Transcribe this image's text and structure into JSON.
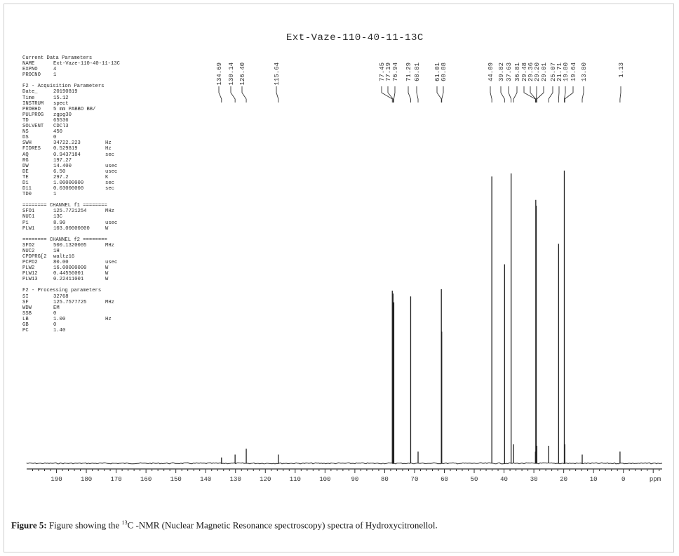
{
  "figure": {
    "caption_label": "Figure 5:",
    "caption_pre": " Figure showing the ",
    "caption_sup": "13",
    "caption_post": "C -NMR (Nuclear Magnetic Resonance spectroscopy) spectra of Hydroxycitronellol."
  },
  "params": {
    "sections": [
      {
        "title": "Current Data Parameters",
        "rows": [
          {
            "k": "NAME",
            "v": "Ext-Vaze-110-40-11-13C",
            "u": ""
          },
          {
            "k": "EXPNO",
            "v": "4",
            "u": ""
          },
          {
            "k": "PROCNO",
            "v": "1",
            "u": ""
          }
        ]
      },
      {
        "title": "F2 - Acquisition Parameters",
        "rows": [
          {
            "k": "Date_",
            "v": "20190819",
            "u": ""
          },
          {
            "k": "Time",
            "v": "15.12",
            "u": ""
          },
          {
            "k": "INSTRUM",
            "v": "spect",
            "u": ""
          },
          {
            "k": "PROBHD",
            "v": "5 mm PABBO BB/",
            "u": ""
          },
          {
            "k": "PULPROG",
            "v": "zgpg30",
            "u": ""
          },
          {
            "k": "TD",
            "v": "65536",
            "u": ""
          },
          {
            "k": "SOLVENT",
            "v": "CDCl3",
            "u": ""
          },
          {
            "k": "NS",
            "v": "450",
            "u": ""
          },
          {
            "k": "DS",
            "v": "0",
            "u": ""
          },
          {
            "k": "SWH",
            "v": "34722.223",
            "u": "Hz"
          },
          {
            "k": "FIDRES",
            "v": "0.529819",
            "u": "Hz"
          },
          {
            "k": "AQ",
            "v": "0.9437184",
            "u": "sec"
          },
          {
            "k": "RG",
            "v": "197.27",
            "u": ""
          },
          {
            "k": "DW",
            "v": "14.400",
            "u": "usec"
          },
          {
            "k": "DE",
            "v": "6.50",
            "u": "usec"
          },
          {
            "k": "TE",
            "v": "297.2",
            "u": "K"
          },
          {
            "k": "D1",
            "v": "1.00000000",
            "u": "sec"
          },
          {
            "k": "D11",
            "v": "0.03000000",
            "u": "sec"
          },
          {
            "k": "TD0",
            "v": "1",
            "u": ""
          }
        ]
      },
      {
        "title": "======== CHANNEL f1 ========",
        "rows": [
          {
            "k": "SFO1",
            "v": "125.7721254",
            "u": "MHz"
          },
          {
            "k": "NUC1",
            "v": "13C",
            "u": ""
          },
          {
            "k": "P1",
            "v": "8.90",
            "u": "usec"
          },
          {
            "k": "PLW1",
            "v": "103.00000000",
            "u": "W"
          }
        ]
      },
      {
        "title": "======== CHANNEL f2 ========",
        "rows": [
          {
            "k": "SFO2",
            "v": "500.1320005",
            "u": "MHz"
          },
          {
            "k": "NUC2",
            "v": "1H",
            "u": ""
          },
          {
            "k": "CPDPRG[2",
            "v": "waltz16",
            "u": ""
          },
          {
            "k": "PCPD2",
            "v": "80.00",
            "u": "usec"
          },
          {
            "k": "PLW2",
            "v": "16.00000000",
            "u": "W"
          },
          {
            "k": "PLW12",
            "v": "0.44556001",
            "u": "W"
          },
          {
            "k": "PLW13",
            "v": "0.22411001",
            "u": "W"
          }
        ]
      },
      {
        "title": "F2 - Processing parameters",
        "rows": [
          {
            "k": "SI",
            "v": "32768",
            "u": ""
          },
          {
            "k": "SF",
            "v": "125.7577725",
            "u": "MHz"
          },
          {
            "k": "WDW",
            "v": "EM",
            "u": ""
          },
          {
            "k": "SSB",
            "v": "0",
            "u": ""
          },
          {
            "k": "LB",
            "v": "1.00",
            "u": "Hz"
          },
          {
            "k": "GB",
            "v": "0",
            "u": ""
          },
          {
            "k": "PC",
            "v": "1.40",
            "u": ""
          }
        ]
      }
    ]
  },
  "chart_data": {
    "type": "line",
    "title": "Ext-Vaze-110-40-11-13C",
    "xlabel": "ppm",
    "ylabel": "",
    "xlim": [
      200,
      -13
    ],
    "x_reversed": true,
    "ylim": [
      0,
      100
    ],
    "grid": false,
    "xticks": [
      190,
      180,
      170,
      160,
      150,
      140,
      130,
      120,
      110,
      100,
      90,
      80,
      70,
      60,
      50,
      40,
      30,
      20,
      10,
      0
    ],
    "tick_suffix_label": "ppm",
    "peak_labels": [
      "134.69",
      "130.14",
      "126.40",
      "115.64",
      "77.45",
      "77.19",
      "76.94",
      "71.29",
      "68.81",
      "61.01",
      "60.88",
      "44.09",
      "39.82",
      "37.63",
      "36.81",
      "29.48",
      "29.36",
      "29.20",
      "29.01",
      "25.07",
      "21.71",
      "19.80",
      "19.64",
      "13.80",
      "1.13"
    ],
    "peaks": [
      {
        "x": 134.69,
        "y": 2.0
      },
      {
        "x": 130.14,
        "y": 3.0
      },
      {
        "x": 126.4,
        "y": 5.0
      },
      {
        "x": 115.64,
        "y": 3.0
      },
      {
        "x": 77.45,
        "y": 59.0
      },
      {
        "x": 77.19,
        "y": 58.0
      },
      {
        "x": 76.94,
        "y": 55.0
      },
      {
        "x": 71.29,
        "y": 57.0
      },
      {
        "x": 68.81,
        "y": 4.0
      },
      {
        "x": 61.01,
        "y": 59.5
      },
      {
        "x": 60.88,
        "y": 45.0
      },
      {
        "x": 44.09,
        "y": 98.0
      },
      {
        "x": 39.82,
        "y": 68.0
      },
      {
        "x": 37.63,
        "y": 99.0
      },
      {
        "x": 36.81,
        "y": 6.5
      },
      {
        "x": 29.48,
        "y": 4.0
      },
      {
        "x": 29.36,
        "y": 90.0
      },
      {
        "x": 29.2,
        "y": 88.0
      },
      {
        "x": 29.01,
        "y": 6.0
      },
      {
        "x": 25.07,
        "y": 6.0
      },
      {
        "x": 21.71,
        "y": 75.0
      },
      {
        "x": 19.8,
        "y": 100.0
      },
      {
        "x": 19.64,
        "y": 6.5
      },
      {
        "x": 13.8,
        "y": 3.0
      },
      {
        "x": 1.13,
        "y": 4.0
      }
    ]
  }
}
